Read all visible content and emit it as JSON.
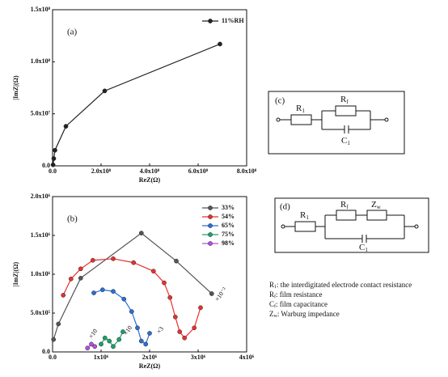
{
  "chart_data": [
    {
      "type": "line",
      "panel_label": "(a)",
      "x_label": "ReZ(Ω)",
      "y_label": "|ImZ|(Ω)",
      "xlim": [
        0,
        800000000
      ],
      "ylim": [
        0,
        150000000
      ],
      "xticks": [
        {
          "value": 0,
          "label": "0.0"
        },
        {
          "value": 200000000,
          "label": "2.0x10⁸"
        },
        {
          "value": 400000000,
          "label": "4.0x10⁸"
        },
        {
          "value": 600000000,
          "label": "6.0x10⁸"
        },
        {
          "value": 800000000,
          "label": "8.0x10⁸"
        }
      ],
      "yticks": [
        {
          "value": 0,
          "label": "0.0"
        },
        {
          "value": 50000000,
          "label": "5.0x10⁷"
        },
        {
          "value": 100000000,
          "label": "1.0x10⁸"
        },
        {
          "value": 150000000,
          "label": "1.5x10⁸"
        }
      ],
      "series": [
        {
          "name": "11%RH",
          "color": "#222222",
          "x": [
            2000000,
            5000000,
            10000000,
            55000000,
            215000000,
            690000000
          ],
          "values": [
            1000000,
            7000000,
            15000000,
            38000000,
            72000000,
            117000000
          ]
        }
      ]
    },
    {
      "type": "line",
      "panel_label": "(b)",
      "x_label": "ReZ(Ω)",
      "y_label": "|ImZ|(Ω)",
      "xlim": [
        0,
        4000000
      ],
      "ylim": [
        0,
        2000000
      ],
      "xticks": [
        {
          "value": 0,
          "label": "0.0"
        },
        {
          "value": 1000000,
          "label": "1x10⁶"
        },
        {
          "value": 2000000,
          "label": "2x10⁶"
        },
        {
          "value": 3000000,
          "label": "3x10⁶"
        },
        {
          "value": 4000000,
          "label": "4x10⁶"
        }
      ],
      "yticks": [
        {
          "value": 0,
          "label": "0.0"
        },
        {
          "value": 500000,
          "label": "5.0x10⁵"
        },
        {
          "value": 1000000,
          "label": "1.0x10⁶"
        },
        {
          "value": 1500000,
          "label": "1.5x10⁶"
        },
        {
          "value": 2000000,
          "label": "2.0x10⁶"
        }
      ],
      "series": [
        {
          "name": "33%",
          "color": "#555555",
          "x": [
            20000,
            120000,
            580000,
            1830000,
            2550000,
            3280000
          ],
          "values": [
            160000,
            360000,
            950000,
            1530000,
            1170000,
            750000
          ]
        },
        {
          "name": "54%",
          "color": "#e8312f",
          "x": [
            220000,
            380000,
            580000,
            830000,
            1250000,
            1670000,
            2080000,
            2300000,
            2420000,
            2530000,
            2620000,
            2720000,
            2920000,
            3050000
          ],
          "values": [
            730000,
            940000,
            1070000,
            1180000,
            1200000,
            1150000,
            1040000,
            890000,
            700000,
            450000,
            260000,
            180000,
            310000,
            570000
          ]
        },
        {
          "name": "65%",
          "color": "#2a6fd6",
          "x": [
            850000,
            1030000,
            1250000,
            1470000,
            1630000,
            1750000,
            1830000,
            1920000,
            2000000
          ],
          "values": [
            760000,
            800000,
            780000,
            680000,
            520000,
            310000,
            140000,
            100000,
            240000
          ]
        },
        {
          "name": "75%",
          "color": "#1aa36a",
          "x": [
            1000000,
            1080000,
            1170000,
            1250000,
            1370000,
            1450000
          ],
          "values": [
            100000,
            180000,
            140000,
            70000,
            160000,
            260000
          ]
        },
        {
          "name": "98%",
          "color": "#b64fe0",
          "x": [
            720000,
            800000,
            870000
          ],
          "values": [
            50000,
            100000,
            70000
          ]
        }
      ],
      "annotations": [
        "×10⁻²",
        "×3",
        "×10",
        "×10"
      ]
    }
  ],
  "circuits": {
    "c": {
      "label": "(c)",
      "r1": {
        "main": "R",
        "sub": "1"
      },
      "rf": {
        "main": "R",
        "sub": "f"
      },
      "c1": {
        "main": "C",
        "sub": "1"
      }
    },
    "d": {
      "label": "(d)",
      "r1": {
        "main": "R",
        "sub": "1"
      },
      "rf": {
        "main": "R",
        "sub": "f"
      },
      "zw": {
        "main": "Z",
        "sub": "w"
      },
      "c1": {
        "main": "C",
        "sub": "1"
      }
    }
  },
  "notes": [
    {
      "main": "R",
      "sub": "1",
      "text": ": the interdigitated electrode contact resistance"
    },
    {
      "main": "R",
      "sub": "f",
      "text": ": film resistance"
    },
    {
      "main": "C",
      "sub": "f",
      "text": ": film capacitance"
    },
    {
      "main": "Z",
      "sub": "w",
      "text": ": Warburg impedance"
    }
  ]
}
